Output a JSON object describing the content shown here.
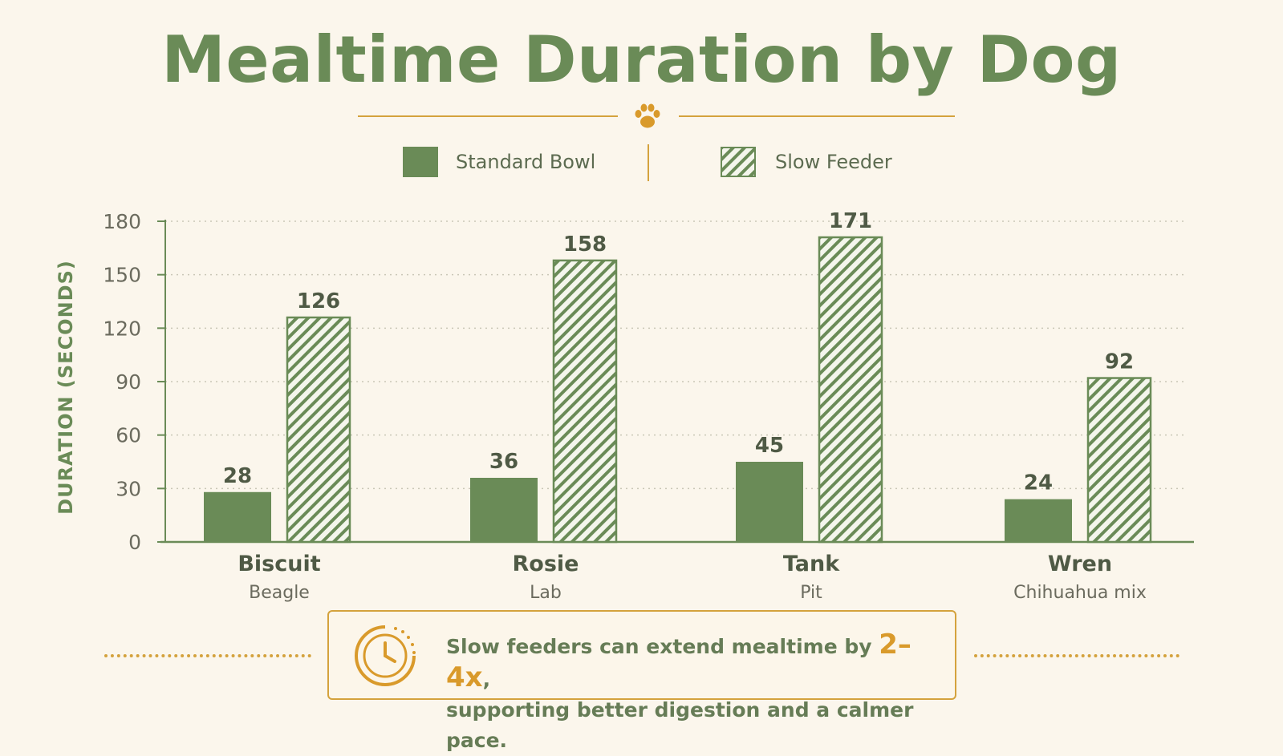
{
  "title": "Mealtime Duration by Dog",
  "legend": [
    {
      "label": "Standard Bowl",
      "style": "solid"
    },
    {
      "label": "Slow Feeder",
      "style": "hatched"
    }
  ],
  "colors": {
    "primary": "#6a8b57",
    "hatch_bg": "#f4f6ec",
    "accent": "#d4a23d",
    "background": "#fbf6ec",
    "text_muted": "#6b6b5e"
  },
  "icons": [
    "paw-icon",
    "clock-icon"
  ],
  "chart_data": {
    "type": "bar",
    "ylabel": "DURATION (SECONDS)",
    "ylim": [
      0,
      180
    ],
    "yticks": [
      0,
      30,
      60,
      90,
      120,
      150,
      180
    ],
    "grid": true,
    "legend_position": "top-center",
    "categories": [
      {
        "name": "Biscuit",
        "breed": "Beagle"
      },
      {
        "name": "Rosie",
        "breed": "Lab"
      },
      {
        "name": "Tank",
        "breed": "Pit"
      },
      {
        "name": "Wren",
        "breed": "Chihuahua mix"
      }
    ],
    "series": [
      {
        "name": "Standard Bowl",
        "values": [
          28,
          36,
          45,
          24
        ]
      },
      {
        "name": "Slow Feeder",
        "values": [
          126,
          158,
          171,
          92
        ]
      }
    ]
  },
  "callout": {
    "line1_before": "Slow feeders can extend mealtime by ",
    "highlight": "2–4x",
    "line1_after": ",",
    "line2": "supporting better digestion and a calmer pace."
  }
}
